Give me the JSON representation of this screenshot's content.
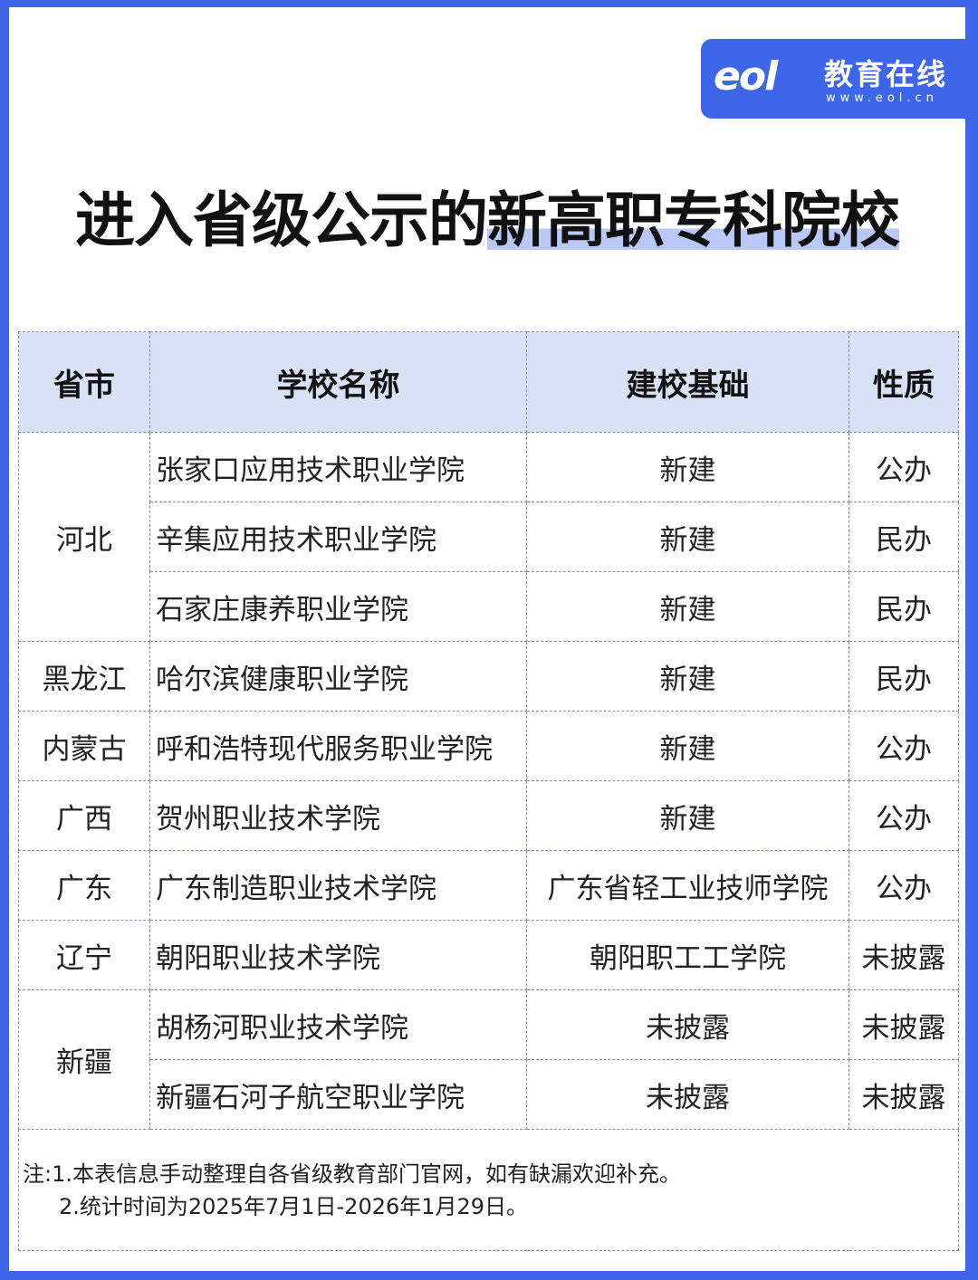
{
  "logo": {
    "mark": "eol",
    "cn": "教育在线",
    "url": "www.eol.cn"
  },
  "title": {
    "part1": "进入省级公示的",
    "part2": "新高职专科院校"
  },
  "table": {
    "headers": [
      "省市",
      "学校名称",
      "建校基础",
      "性质"
    ],
    "rows": [
      {
        "province": "河北",
        "span": 3,
        "school": "张家口应用技术职业学院",
        "basis": "新建",
        "type": "公办"
      },
      {
        "school": "辛集应用技术职业学院",
        "basis": "新建",
        "type": "民办"
      },
      {
        "school": "石家庄康养职业学院",
        "basis": "新建",
        "type": "民办"
      },
      {
        "province": "黑龙江",
        "span": 1,
        "school": "哈尔滨健康职业学院",
        "basis": "新建",
        "type": "民办"
      },
      {
        "province": "内蒙古",
        "span": 1,
        "school": "呼和浩特现代服务职业学院",
        "basis": "新建",
        "type": "公办"
      },
      {
        "province": "广西",
        "span": 1,
        "school": "贺州职业技术学院",
        "basis": "新建",
        "type": "公办"
      },
      {
        "province": "广东",
        "span": 1,
        "school": "广东制造职业技术学院",
        "basis": "广东省轻工业技师学院",
        "type": "公办"
      },
      {
        "province": "辽宁",
        "span": 1,
        "school": "朝阳职业技术学院",
        "basis": "朝阳职工工学院",
        "type": "未披露"
      },
      {
        "province": "新疆",
        "span": 2,
        "school": "胡杨河职业技术学院",
        "basis": "未披露",
        "type": "未披露"
      },
      {
        "school": "新疆石河子航空职业学院",
        "basis": "未披露",
        "type": "未披露"
      }
    ]
  },
  "notes": [
    "注:1.本表信息手动整理自各省级教育部门官网，如有缺漏欢迎补充。",
    "2.统计时间为2025年7月1日-2026年1月29日。"
  ],
  "colors": {
    "frame": "#3e66e8",
    "header_bg": "#d9e1f7",
    "highlight": "#b9c8f5"
  }
}
